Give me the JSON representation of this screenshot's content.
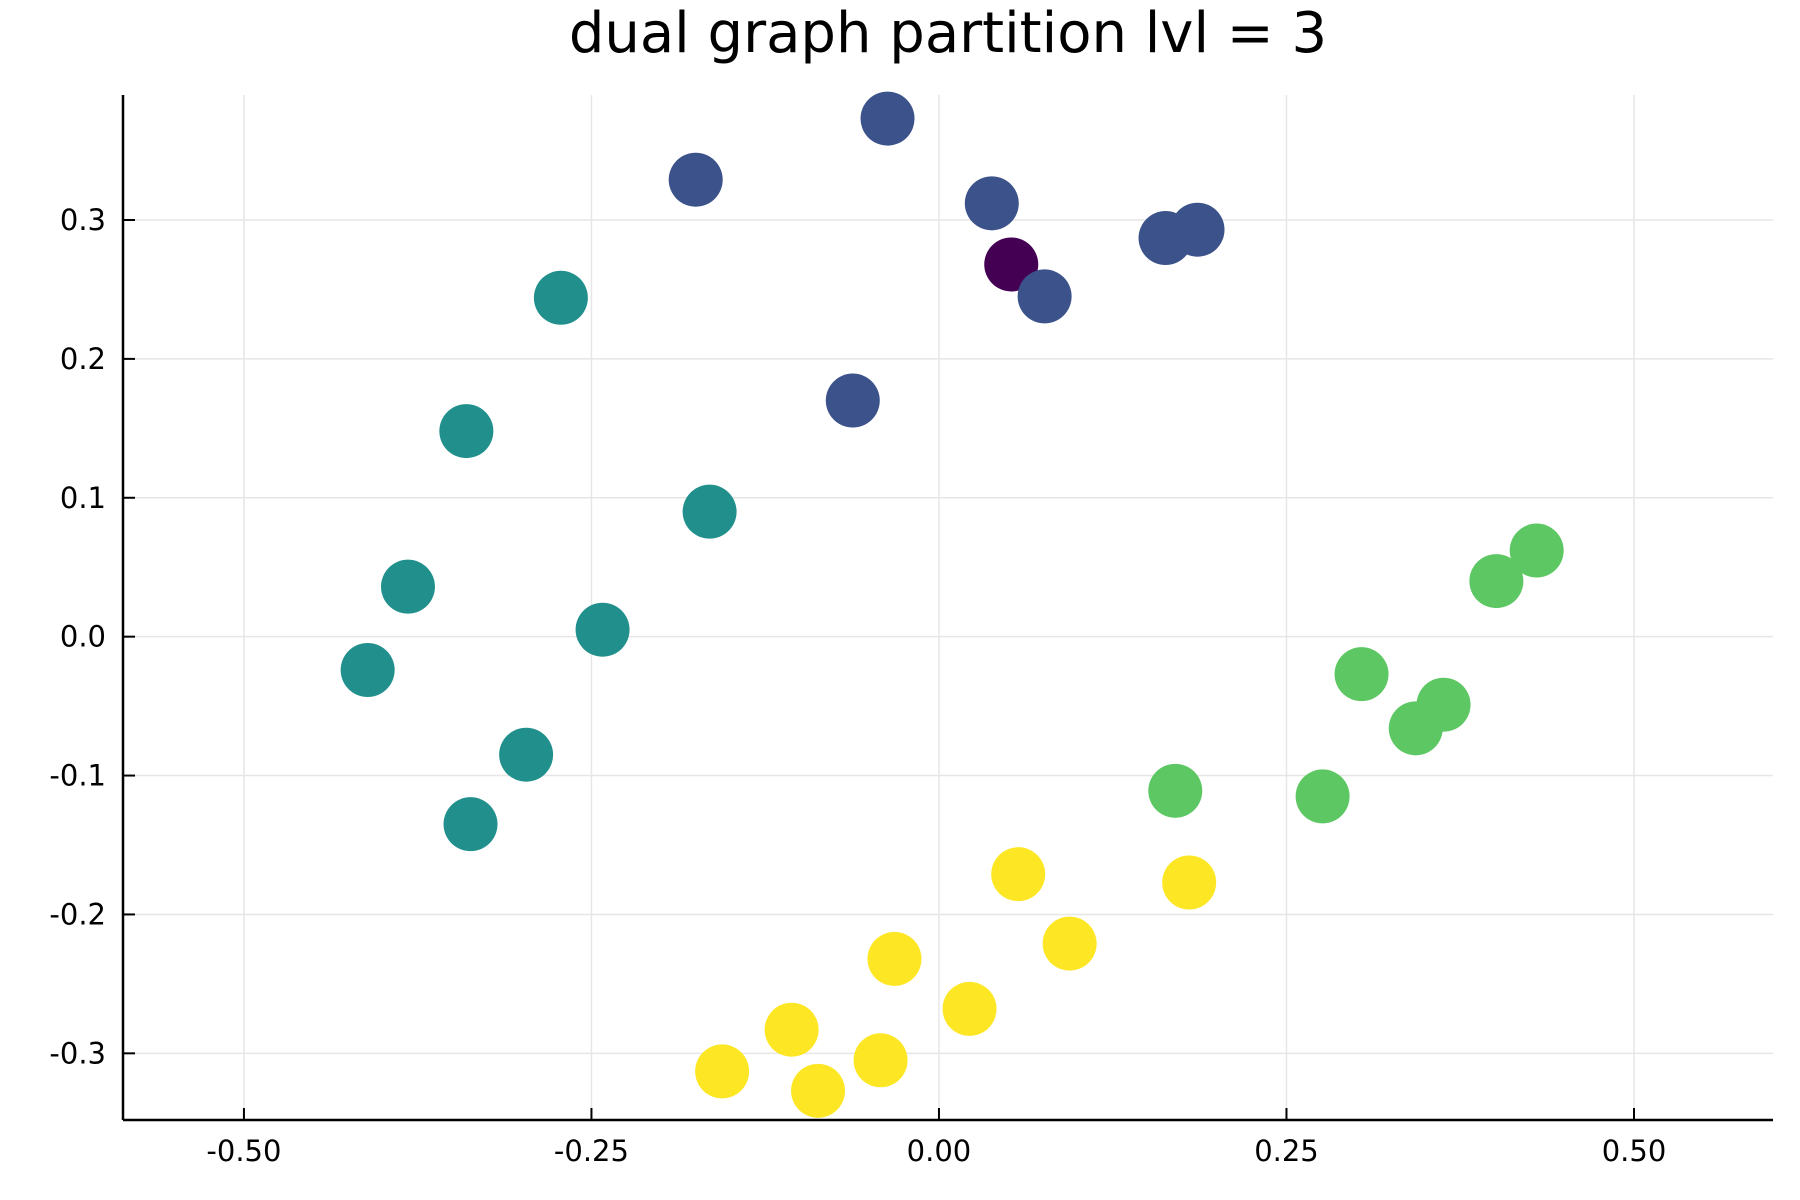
{
  "chart_data": {
    "type": "scatter",
    "title": "dual graph partition lvl = 3",
    "xlabel": "",
    "ylabel": "",
    "xlim": [
      -0.587,
      0.6
    ],
    "ylim": [
      -0.348,
      0.39
    ],
    "grid": true,
    "legend": "none",
    "x_ticks": [
      -0.5,
      -0.25,
      0.0,
      0.25,
      0.5
    ],
    "x_tick_labels": [
      "-0.50",
      "-0.25",
      "0.00",
      "0.25",
      "0.50"
    ],
    "y_ticks": [
      -0.3,
      -0.2,
      -0.1,
      0.0,
      0.1,
      0.2,
      0.3
    ],
    "y_tick_labels": [
      "-0.3",
      "-0.2",
      "-0.1",
      "0.0",
      "0.1",
      "0.2",
      "0.3"
    ],
    "series": [
      {
        "color": "#440154",
        "points": [
          [
            0.052,
            0.268
          ]
        ]
      },
      {
        "color": "#3b528b",
        "points": [
          [
            -0.037,
            0.373
          ],
          [
            -0.175,
            0.329
          ],
          [
            0.038,
            0.312
          ],
          [
            0.163,
            0.287
          ],
          [
            0.186,
            0.293
          ],
          [
            0.076,
            0.245
          ],
          [
            -0.062,
            0.17
          ]
        ]
      },
      {
        "color": "#21908d",
        "points": [
          [
            -0.272,
            0.244
          ],
          [
            -0.34,
            0.148
          ],
          [
            -0.165,
            0.09
          ],
          [
            -0.382,
            0.036
          ],
          [
            -0.242,
            0.005
          ],
          [
            -0.411,
            -0.024
          ],
          [
            -0.297,
            -0.085
          ],
          [
            -0.337,
            -0.135
          ]
        ]
      },
      {
        "color": "#5dc863",
        "points": [
          [
            0.43,
            0.062
          ],
          [
            0.401,
            0.04
          ],
          [
            0.304,
            -0.027
          ],
          [
            0.363,
            -0.049
          ],
          [
            0.343,
            -0.066
          ],
          [
            0.17,
            -0.111
          ],
          [
            0.276,
            -0.115
          ]
        ]
      },
      {
        "color": "#fde725",
        "points": [
          [
            0.057,
            -0.171
          ],
          [
            0.18,
            -0.177
          ],
          [
            0.094,
            -0.221
          ],
          [
            -0.032,
            -0.232
          ],
          [
            0.022,
            -0.268
          ],
          [
            -0.106,
            -0.283
          ],
          [
            -0.042,
            -0.305
          ],
          [
            -0.156,
            -0.313
          ],
          [
            -0.087,
            -0.327
          ]
        ]
      }
    ]
  }
}
